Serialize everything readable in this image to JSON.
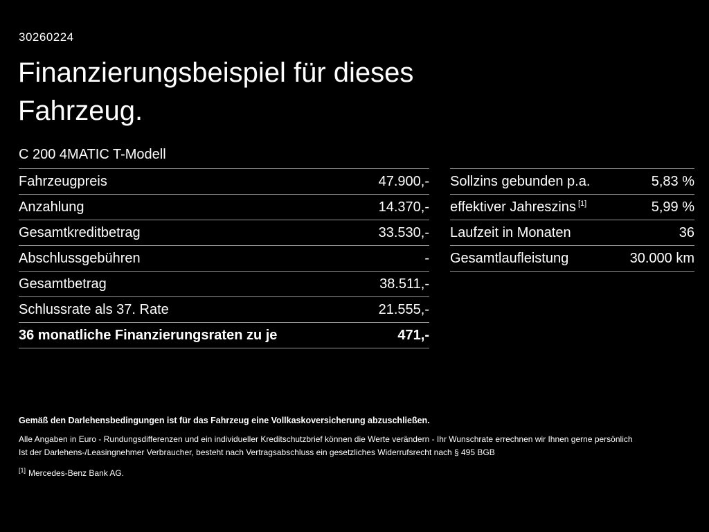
{
  "page": {
    "id_number": "30260224",
    "title": "Finanzierungsbeispiel für dieses Fahrzeug.",
    "subtitle": "C 200 4MATIC T-Modell"
  },
  "left_table": {
    "rows": [
      {
        "label": "Fahrzeugpreis",
        "value": "47.900,-"
      },
      {
        "label": "Anzahlung",
        "value": "14.370,-"
      },
      {
        "label": "Gesamtkreditbetrag",
        "value": "33.530,-"
      },
      {
        "label": "Abschlussgebühren",
        "value": "-"
      },
      {
        "label": "Gesamtbetrag",
        "value": "38.511,-"
      },
      {
        "label": "Schlussrate als 37. Rate",
        "value": "21.555,-"
      },
      {
        "label": "36 monatliche Finanzierungsraten zu je",
        "value": "471,-"
      }
    ]
  },
  "right_table": {
    "rows": [
      {
        "label": "Sollzins gebunden p.a.",
        "sup": "",
        "value": "5,83 %"
      },
      {
        "label": "effektiver Jahreszins",
        "sup": "[1]",
        "value": "5,99 %"
      },
      {
        "label": "Laufzeit in Monaten",
        "sup": "",
        "value": "36"
      },
      {
        "label": "Gesamtlaufleistung",
        "sup": "",
        "value": "30.000 km"
      }
    ]
  },
  "footer": {
    "line1": "Gemäß den Darlehensbedingungen ist für das Fahrzeug eine Vollkaskoversicherung abzuschließen.",
    "line2": "Alle Angaben in Euro - Rundungsdifferenzen und ein individueller Kreditschutzbrief können die Werte verändern - Ihr Wunschrate errechnen wir Ihnen gerne persönlich",
    "line3": "Ist der Darlehens-/Leasingnehmer Verbraucher, besteht nach Vertragsabschluss ein gesetzliches Widerrufsrecht nach § 495 BGB",
    "footnote_marker": "[1]",
    "footnote_text": "Mercedes-Benz Bank AG."
  },
  "colors": {
    "background": "#000000",
    "text": "#ffffff",
    "divider": "#9b9b9b"
  }
}
